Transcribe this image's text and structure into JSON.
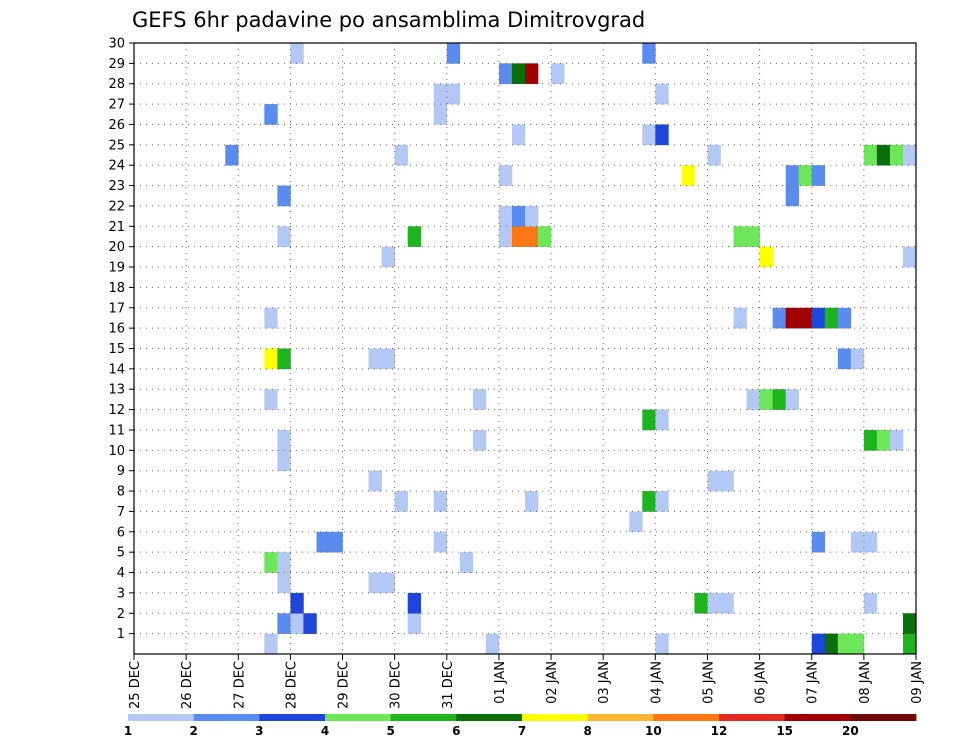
{
  "chart_data": {
    "type": "heatmap",
    "title": "GEFS 6hr padavine po ansamblima Dimitrovgrad",
    "xlabel": "",
    "ylabel": "",
    "x_tick_labels": [
      "25 DEC",
      "26 DEC",
      "27 DEC",
      "28 DEC",
      "29 DEC",
      "30 DEC",
      "31 DEC",
      "01 JAN",
      "02 JAN",
      "03 JAN",
      "04 JAN",
      "05 JAN",
      "06 JAN",
      "07 JAN",
      "08 JAN",
      "09 JAN"
    ],
    "x_steps_per_day": 4,
    "y_tick_labels": [
      "1",
      "2",
      "3",
      "4",
      "5",
      "6",
      "7",
      "8",
      "9",
      "10",
      "11",
      "12",
      "13",
      "14",
      "15",
      "16",
      "17",
      "18",
      "19",
      "20",
      "21",
      "22",
      "23",
      "24",
      "25",
      "26",
      "27",
      "28",
      "29",
      "30"
    ],
    "ylim": [
      0,
      30
    ],
    "grid": true,
    "colorbar": {
      "labels": [
        "1",
        "2",
        "3",
        "4",
        "5",
        "6",
        "7",
        "8",
        "10",
        "12",
        "15",
        "20"
      ],
      "colors": [
        "#b4c8f5",
        "#5a8cf0",
        "#1e46dc",
        "#6ee65a",
        "#1eb41e",
        "#0a6e0a",
        "#ffff00",
        "#ffb432",
        "#ff7814",
        "#e6281e",
        "#a00000",
        "#6e0a0a"
      ]
    },
    "cells": [
      {
        "member": 0,
        "step": 10,
        "level": 1
      },
      {
        "member": 0,
        "step": 27,
        "level": 1
      },
      {
        "member": 0,
        "step": 40,
        "level": 1
      },
      {
        "member": 0,
        "step": 52,
        "level": 3
      },
      {
        "member": 0,
        "step": 53,
        "level": 6
      },
      {
        "member": 0,
        "step": 54,
        "level": 4
      },
      {
        "member": 0,
        "step": 55,
        "level": 4
      },
      {
        "member": 0,
        "step": 59,
        "level": 5
      },
      {
        "member": 1,
        "step": 11,
        "level": 2
      },
      {
        "member": 1,
        "step": 12,
        "level": 1
      },
      {
        "member": 1,
        "step": 13,
        "level": 3
      },
      {
        "member": 1,
        "step": 21,
        "level": 1
      },
      {
        "member": 1,
        "step": 59,
        "level": 6
      },
      {
        "member": 2,
        "step": 12,
        "level": 3
      },
      {
        "member": 2,
        "step": 21,
        "level": 3
      },
      {
        "member": 2,
        "step": 43,
        "level": 5
      },
      {
        "member": 2,
        "step": 44,
        "level": 1
      },
      {
        "member": 2,
        "step": 45,
        "level": 1
      },
      {
        "member": 2,
        "step": 56,
        "level": 1
      },
      {
        "member": 3,
        "step": 11,
        "level": 1
      },
      {
        "member": 3,
        "step": 18,
        "level": 1
      },
      {
        "member": 3,
        "step": 19,
        "level": 1
      },
      {
        "member": 4,
        "step": 10,
        "level": 4
      },
      {
        "member": 4,
        "step": 11,
        "level": 1
      },
      {
        "member": 4,
        "step": 25,
        "level": 1
      },
      {
        "member": 5,
        "step": 14,
        "level": 2
      },
      {
        "member": 5,
        "step": 15,
        "level": 2
      },
      {
        "member": 5,
        "step": 23,
        "level": 1
      },
      {
        "member": 5,
        "step": 52,
        "level": 2
      },
      {
        "member": 5,
        "step": 55,
        "level": 1
      },
      {
        "member": 5,
        "step": 56,
        "level": 1
      },
      {
        "member": 6,
        "step": 38,
        "level": 1
      },
      {
        "member": 7,
        "step": 20,
        "level": 1
      },
      {
        "member": 7,
        "step": 23,
        "level": 1
      },
      {
        "member": 7,
        "step": 30,
        "level": 1
      },
      {
        "member": 7,
        "step": 39,
        "level": 5
      },
      {
        "member": 7,
        "step": 40,
        "level": 1
      },
      {
        "member": 8,
        "step": 18,
        "level": 1
      },
      {
        "member": 8,
        "step": 44,
        "level": 1
      },
      {
        "member": 8,
        "step": 45,
        "level": 1
      },
      {
        "member": 9,
        "step": 11,
        "level": 1
      },
      {
        "member": 10,
        "step": 11,
        "level": 1
      },
      {
        "member": 10,
        "step": 26,
        "level": 1
      },
      {
        "member": 10,
        "step": 56,
        "level": 5
      },
      {
        "member": 10,
        "step": 57,
        "level": 4
      },
      {
        "member": 10,
        "step": 58,
        "level": 1
      },
      {
        "member": 11,
        "step": 39,
        "level": 5
      },
      {
        "member": 11,
        "step": 40,
        "level": 1
      },
      {
        "member": 12,
        "step": 10,
        "level": 1
      },
      {
        "member": 12,
        "step": 26,
        "level": 1
      },
      {
        "member": 12,
        "step": 47,
        "level": 1
      },
      {
        "member": 12,
        "step": 48,
        "level": 4
      },
      {
        "member": 12,
        "step": 49,
        "level": 5
      },
      {
        "member": 12,
        "step": 50,
        "level": 1
      },
      {
        "member": 14,
        "step": 10,
        "level": 7
      },
      {
        "member": 14,
        "step": 11,
        "level": 5
      },
      {
        "member": 14,
        "step": 18,
        "level": 1
      },
      {
        "member": 14,
        "step": 19,
        "level": 1
      },
      {
        "member": 14,
        "step": 54,
        "level": 2
      },
      {
        "member": 14,
        "step": 55,
        "level": 1
      },
      {
        "member": 16,
        "step": 10,
        "level": 1
      },
      {
        "member": 16,
        "step": 46,
        "level": 1
      },
      {
        "member": 16,
        "step": 49,
        "level": 2
      },
      {
        "member": 16,
        "step": 50,
        "level": 11
      },
      {
        "member": 16,
        "step": 51,
        "level": 11
      },
      {
        "member": 16,
        "step": 52,
        "level": 3
      },
      {
        "member": 16,
        "step": 53,
        "level": 5
      },
      {
        "member": 16,
        "step": 54,
        "level": 2
      },
      {
        "member": 19,
        "step": 19,
        "level": 1
      },
      {
        "member": 19,
        "step": 48,
        "level": 7
      },
      {
        "member": 19,
        "step": 59,
        "level": 1
      },
      {
        "member": 20,
        "step": 11,
        "level": 1
      },
      {
        "member": 20,
        "step": 21,
        "level": 5
      },
      {
        "member": 20,
        "step": 28,
        "level": 1
      },
      {
        "member": 20,
        "step": 29,
        "level": 9
      },
      {
        "member": 20,
        "step": 30,
        "level": 9
      },
      {
        "member": 20,
        "step": 31,
        "level": 4
      },
      {
        "member": 20,
        "step": 46,
        "level": 4
      },
      {
        "member": 20,
        "step": 47,
        "level": 4
      },
      {
        "member": 21,
        "step": 28,
        "level": 1
      },
      {
        "member": 21,
        "step": 29,
        "level": 2
      },
      {
        "member": 21,
        "step": 30,
        "level": 1
      },
      {
        "member": 22,
        "step": 11,
        "level": 2
      },
      {
        "member": 22,
        "step": 50,
        "level": 2
      },
      {
        "member": 23,
        "step": 28,
        "level": 1
      },
      {
        "member": 23,
        "step": 42,
        "level": 7
      },
      {
        "member": 23,
        "step": 50,
        "level": 2
      },
      {
        "member": 23,
        "step": 51,
        "level": 4
      },
      {
        "member": 23,
        "step": 52,
        "level": 2
      },
      {
        "member": 24,
        "step": 7,
        "level": 2
      },
      {
        "member": 24,
        "step": 20,
        "level": 1
      },
      {
        "member": 24,
        "step": 44,
        "level": 1
      },
      {
        "member": 24,
        "step": 56,
        "level": 4
      },
      {
        "member": 24,
        "step": 57,
        "level": 6
      },
      {
        "member": 24,
        "step": 58,
        "level": 4
      },
      {
        "member": 24,
        "step": 59,
        "level": 1
      },
      {
        "member": 25,
        "step": 29,
        "level": 1
      },
      {
        "member": 25,
        "step": 39,
        "level": 1
      },
      {
        "member": 25,
        "step": 40,
        "level": 3
      },
      {
        "member": 26,
        "step": 10,
        "level": 2
      },
      {
        "member": 26,
        "step": 23,
        "level": 1
      },
      {
        "member": 27,
        "step": 23,
        "level": 1
      },
      {
        "member": 27,
        "step": 24,
        "level": 1
      },
      {
        "member": 27,
        "step": 40,
        "level": 1
      },
      {
        "member": 28,
        "step": 28,
        "level": 2
      },
      {
        "member": 28,
        "step": 29,
        "level": 6
      },
      {
        "member": 28,
        "step": 30,
        "level": 11
      },
      {
        "member": 28,
        "step": 32,
        "level": 1
      },
      {
        "member": 29,
        "step": 12,
        "level": 1
      },
      {
        "member": 29,
        "step": 24,
        "level": 2
      },
      {
        "member": 29,
        "step": 39,
        "level": 2
      }
    ]
  }
}
